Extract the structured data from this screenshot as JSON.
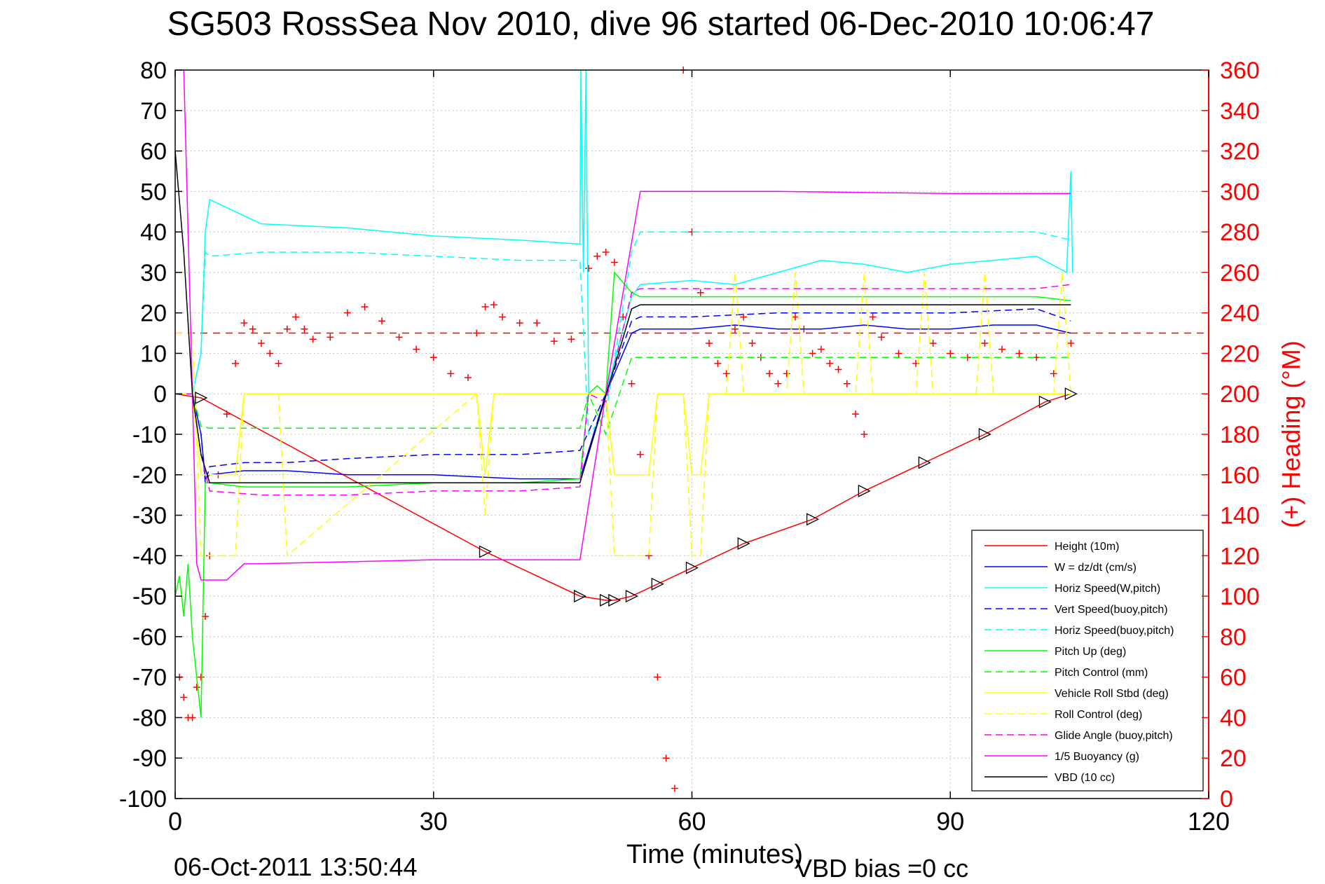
{
  "chart_data": {
    "type": "line",
    "title": "SG503 RossSea Nov 2010, dive 96 started 06-Dec-2010 10:06:47",
    "xlabel": "Time (minutes)",
    "ylabel": "",
    "y2label": "(+) Heading (°M)",
    "xlim": [
      0,
      120
    ],
    "ylim": [
      -100,
      80
    ],
    "y2lim": [
      0,
      360
    ],
    "xticks": [
      "0",
      "30",
      "60",
      "90",
      "120"
    ],
    "yticks": [
      "80",
      "70",
      "60",
      "50",
      "40",
      "30",
      "20",
      "10",
      "0",
      "-10",
      "-20",
      "-30",
      "-40",
      "-50",
      "-60",
      "-70",
      "-80",
      "-90",
      "-100"
    ],
    "y2ticks": [
      "360",
      "340",
      "320",
      "300",
      "280",
      "260",
      "240",
      "220",
      "200",
      "180",
      "160",
      "140",
      "120",
      "100",
      "80",
      "60",
      "40",
      "20",
      "0"
    ],
    "grid": true,
    "legend_position": "lower-right",
    "footer_left": "06-Oct-2011 13:50:44",
    "footer_right": "VBD bias =0 cc",
    "colors": {
      "red": "#ff0000",
      "blue": "#0000ff",
      "cyan": "#00ffff",
      "green": "#00ff00",
      "yellow": "#ffff00",
      "magenta": "#ff00ff",
      "black": "#000000"
    },
    "series": [
      {
        "name": "Height (10m)",
        "color": "#ff0000",
        "dash": "solid",
        "x": [
          0,
          3,
          36,
          47,
          50,
          51,
          53,
          56,
          60,
          66,
          74,
          80,
          87,
          94,
          101,
          104
        ],
        "y": [
          0,
          -1,
          -39,
          -50,
          -51,
          -51,
          -50,
          -47,
          -43,
          -37,
          -31,
          -24,
          -17,
          -10,
          -2,
          0
        ]
      },
      {
        "name": "W = dz/dt (cm/s)",
        "color": "#0000ff",
        "dash": "solid",
        "x": [
          0,
          2,
          3,
          3.5,
          4,
          8,
          13,
          20,
          30,
          40,
          47,
          50,
          53,
          54,
          60,
          65,
          70,
          75,
          80,
          85,
          90,
          95,
          100,
          104
        ],
        "y": [
          0,
          0,
          -10,
          -21,
          -20,
          -19,
          -19,
          -20,
          -20,
          -21,
          -21,
          0,
          15,
          16,
          16,
          17,
          16,
          16,
          17,
          16,
          16,
          17,
          17,
          15
        ]
      },
      {
        "name": "Horiz Speed(W,pitch)",
        "color": "#00ffff",
        "dash": "solid",
        "x": [
          0,
          2,
          3,
          3.5,
          4,
          10,
          20,
          30,
          40,
          47,
          47.1,
          47.4,
          47.7,
          48,
          50,
          53,
          54,
          60,
          65,
          70,
          75,
          80,
          85,
          90,
          95,
          100,
          103.5,
          104,
          104.2
        ],
        "y": [
          0,
          0,
          10,
          40,
          48,
          42,
          41,
          39,
          38,
          37,
          80,
          30,
          80,
          0,
          0,
          24,
          27,
          28,
          27,
          30,
          33,
          32,
          30,
          32,
          33,
          34,
          30,
          55,
          30
        ]
      },
      {
        "name": "Vert Speed(buoy,pitch)",
        "color": "#0000ff",
        "dash": "dashed",
        "x": [
          0,
          2,
          3,
          3.5,
          4,
          8,
          13,
          20,
          30,
          40,
          47,
          50,
          53,
          54,
          60,
          70,
          80,
          90,
          100,
          104
        ],
        "y": [
          0,
          0,
          -10,
          -22,
          -18,
          -17,
          -17,
          -16,
          -15,
          -15,
          -14,
          0,
          18,
          19,
          19,
          20,
          20,
          20,
          21,
          18
        ]
      },
      {
        "name": "Horiz Speed(buoy,pitch)",
        "color": "#00ffff",
        "dash": "dashed",
        "x": [
          0,
          2,
          3,
          3.5,
          4,
          10,
          20,
          30,
          40,
          47,
          48,
          50,
          53,
          54,
          60,
          70,
          80,
          90,
          100,
          104
        ],
        "y": [
          0,
          0,
          10,
          35,
          34,
          35,
          35,
          34,
          33,
          33,
          -10,
          -5,
          35,
          40,
          40,
          40,
          40,
          40,
          40,
          38
        ]
      },
      {
        "name": "Pitch Up (deg)",
        "color": "#00ff00",
        "dash": "solid",
        "x": [
          0,
          0.5,
          1,
          1.5,
          2,
          2.5,
          3,
          3.5,
          4,
          8,
          20,
          30,
          40,
          47,
          48,
          49,
          50,
          51,
          53,
          54,
          60,
          70,
          80,
          90,
          100,
          104
        ],
        "y": [
          -50,
          -45,
          -55,
          -42,
          -60,
          -70,
          -80,
          -22,
          -22,
          -23,
          -23,
          -22,
          -22,
          -21,
          0,
          2,
          0,
          30,
          25,
          24,
          24,
          24,
          24,
          24,
          24,
          23
        ]
      },
      {
        "name": "Pitch Control (mm)",
        "color": "#00ff00",
        "dash": "dashed",
        "x": [
          0,
          2,
          3,
          4,
          47,
          48,
          50,
          53,
          104
        ],
        "y": [
          0,
          0,
          -8,
          -8.5,
          -8.5,
          0,
          -10,
          9,
          9
        ]
      },
      {
        "name": "Vehicle Roll Stbd (deg)",
        "color": "#ffff00",
        "dash": "solid",
        "x": [
          0,
          2,
          3,
          4,
          7,
          8,
          13,
          35,
          36,
          37,
          50,
          51,
          55,
          56,
          59,
          60,
          61,
          62,
          65,
          66,
          70,
          72,
          80,
          82,
          86,
          88,
          94,
          96,
          102,
          104
        ],
        "y": [
          0,
          0,
          -20,
          -20,
          -20,
          0,
          0,
          0,
          -20,
          0,
          0,
          -20,
          -20,
          0,
          0,
          -20,
          -20,
          0,
          0,
          0,
          0,
          0,
          0,
          0,
          0,
          0,
          0,
          0,
          0,
          0
        ]
      },
      {
        "name": "Roll Control (deg)",
        "color": "#ffff00",
        "dash": "dashed",
        "x": [
          0,
          2,
          3,
          7,
          8,
          12,
          13,
          35,
          36,
          37,
          50,
          51,
          55,
          56,
          59,
          60,
          61,
          62,
          64,
          65,
          66,
          71,
          72,
          73,
          79,
          80,
          81,
          86,
          87,
          88,
          93,
          94,
          95,
          102,
          103,
          104
        ],
        "y": [
          15,
          15,
          -40,
          -40,
          0,
          0,
          -40,
          0,
          -30,
          0,
          0,
          -40,
          -40,
          0,
          0,
          -40,
          -40,
          0,
          0,
          30,
          0,
          0,
          30,
          0,
          0,
          30,
          0,
          0,
          30,
          0,
          0,
          30,
          0,
          0,
          30,
          0
        ]
      },
      {
        "name": "Glide Angle (buoy,pitch)",
        "color": "#ff00ff",
        "dash": "dashed",
        "x": [
          0,
          2,
          3,
          4,
          10,
          20,
          30,
          40,
          47,
          48,
          50,
          53,
          54,
          60,
          70,
          80,
          90,
          100,
          104
        ],
        "y": [
          0,
          0,
          -15,
          -24,
          -25,
          -25,
          -24,
          -24,
          -23,
          0,
          -2,
          25,
          26,
          26,
          26,
          26,
          26,
          26,
          27
        ]
      },
      {
        "name": "1/5 Buoyancy (g)",
        "color": "#ff00ff",
        "dash": "solid",
        "x": [
          1,
          2,
          2.5,
          3,
          4,
          6,
          8,
          9,
          20,
          30,
          40,
          47,
          50,
          54,
          70,
          90,
          104
        ],
        "y": [
          80,
          0,
          -42,
          -46,
          -46,
          -46,
          -42,
          -42,
          -41.5,
          -41,
          -41,
          -41,
          0,
          50,
          50,
          49.5,
          49.5
        ]
      },
      {
        "name": "VBD (10 cc)",
        "color": "#000000",
        "dash": "solid",
        "x": [
          0,
          1,
          2,
          3,
          4,
          10,
          20,
          30,
          40,
          47,
          53,
          54,
          70,
          90,
          104
        ],
        "y": [
          60,
          35,
          0,
          -15,
          -22,
          -22,
          -22,
          -22,
          -22,
          -22,
          21,
          22,
          22,
          22,
          22
        ]
      }
    ],
    "heading_reference_deg": 230,
    "heading_x": [
      0.5,
      1,
      1.5,
      2,
      2.5,
      3,
      3.5,
      4,
      5,
      6,
      7,
      8,
      9,
      10,
      11,
      12,
      13,
      14,
      15,
      16,
      18,
      20,
      22,
      24,
      26,
      28,
      30,
      32,
      34,
      35,
      36,
      37,
      38,
      40,
      42,
      44,
      46,
      48,
      49,
      50,
      51,
      52,
      53,
      54,
      55,
      56,
      57,
      58,
      59,
      60,
      61,
      62,
      63,
      64,
      65,
      66,
      67,
      68,
      69,
      70,
      71,
      72,
      73,
      74,
      75,
      76,
      77,
      78,
      79,
      80,
      81,
      82,
      84,
      86,
      88,
      90,
      92,
      94,
      96,
      98,
      100,
      102,
      104
    ],
    "heading_y": [
      60,
      50,
      40,
      40,
      55,
      60,
      90,
      120,
      160,
      190,
      215,
      235,
      232,
      225,
      220,
      215,
      232,
      238,
      232,
      227,
      228,
      240,
      243,
      236,
      228,
      222,
      218,
      210,
      208,
      230,
      243,
      244,
      238,
      235,
      235,
      226,
      227,
      262,
      268,
      270,
      265,
      238,
      205,
      170,
      120,
      60,
      20,
      5,
      360,
      280,
      250,
      225,
      215,
      210,
      232,
      238,
      225,
      218,
      210,
      205,
      210,
      238,
      232,
      220,
      222,
      215,
      212,
      205,
      190,
      180,
      238,
      228,
      220,
      215,
      225,
      220,
      218,
      225,
      222,
      220,
      218,
      210,
      225
    ]
  }
}
